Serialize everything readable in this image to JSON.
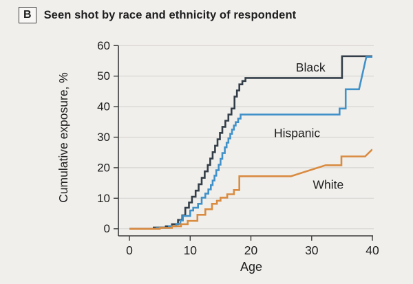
{
  "panel": {
    "letter": "B",
    "title": "Seen shot by race and ethnicity of respondent"
  },
  "colors": {
    "background": "#f0efec",
    "grid": "#d8d5d1",
    "axis": "#3a3a3a",
    "text": "#1e1e1e",
    "black_series": "#333e48",
    "hispanic_series": "#4191c9",
    "white_series": "#d98b40"
  },
  "chart_data": {
    "type": "line",
    "subtype": "step-cumulative",
    "title": "Seen shot by race and ethnicity of respondent",
    "xlabel": "Age",
    "ylabel": "Cumulative exposure, %",
    "xlim": [
      0,
      40
    ],
    "ylim": [
      0,
      60
    ],
    "xticks": [
      0,
      10,
      20,
      30,
      40
    ],
    "yticks": [
      0,
      10,
      20,
      30,
      40,
      50,
      60
    ],
    "grid": true,
    "legend_position": "inline-labels",
    "series": [
      {
        "name": "Black",
        "color": "#333e48",
        "label_at": [
          27.4,
          51.5
        ],
        "points": [
          [
            0,
            0
          ],
          [
            4,
            0
          ],
          [
            4,
            0.4
          ],
          [
            6,
            0.4
          ],
          [
            6,
            0.8
          ],
          [
            7,
            0.8
          ],
          [
            7,
            1.5
          ],
          [
            8,
            1.5
          ],
          [
            8,
            2.9
          ],
          [
            8.7,
            2.9
          ],
          [
            8.7,
            4.4
          ],
          [
            9.2,
            4.4
          ],
          [
            9.2,
            6.9
          ],
          [
            9.8,
            6.9
          ],
          [
            9.8,
            8.6
          ],
          [
            10.3,
            8.6
          ],
          [
            10.3,
            10.5
          ],
          [
            10.9,
            10.5
          ],
          [
            10.9,
            12.5
          ],
          [
            11.4,
            12.5
          ],
          [
            11.4,
            14.6
          ],
          [
            11.9,
            14.6
          ],
          [
            11.9,
            16.7
          ],
          [
            12.4,
            16.7
          ],
          [
            12.4,
            18.8
          ],
          [
            12.9,
            18.8
          ],
          [
            12.9,
            20.9
          ],
          [
            13.3,
            20.9
          ],
          [
            13.3,
            23
          ],
          [
            13.7,
            23
          ],
          [
            13.7,
            25.1
          ],
          [
            14.1,
            25.1
          ],
          [
            14.1,
            27.2
          ],
          [
            14.5,
            27.2
          ],
          [
            14.5,
            29.3
          ],
          [
            14.9,
            29.3
          ],
          [
            14.9,
            31.4
          ],
          [
            15.3,
            31.4
          ],
          [
            15.3,
            33.4
          ],
          [
            15.8,
            33.4
          ],
          [
            15.8,
            35.4
          ],
          [
            16.3,
            35.4
          ],
          [
            16.3,
            37.4
          ],
          [
            16.8,
            37.4
          ],
          [
            16.8,
            39.4
          ],
          [
            17.3,
            39.4
          ],
          [
            17.3,
            43.3
          ],
          [
            17.7,
            43.3
          ],
          [
            17.7,
            45.3
          ],
          [
            18.1,
            45.3
          ],
          [
            18.1,
            47.3
          ],
          [
            18.6,
            47.3
          ],
          [
            18.6,
            48.4
          ],
          [
            19.1,
            48.4
          ],
          [
            19.1,
            49.4
          ],
          [
            35,
            49.4
          ],
          [
            35,
            56.5
          ],
          [
            40,
            56.5
          ]
        ]
      },
      {
        "name": "Hispanic",
        "color": "#4191c9",
        "label_at": [
          23.8,
          30.0
        ],
        "points": [
          [
            0,
            0
          ],
          [
            4.5,
            0
          ],
          [
            4.5,
            0.3
          ],
          [
            6.5,
            0.3
          ],
          [
            6.5,
            0.8
          ],
          [
            7.7,
            0.8
          ],
          [
            7.7,
            1.6
          ],
          [
            8.4,
            1.6
          ],
          [
            8.4,
            2.7
          ],
          [
            8.8,
            2.7
          ],
          [
            8.8,
            4.2
          ],
          [
            10,
            4.2
          ],
          [
            10,
            6
          ],
          [
            10.5,
            6
          ],
          [
            10.5,
            6.9
          ],
          [
            11.3,
            6.9
          ],
          [
            11.3,
            8.2
          ],
          [
            11.9,
            8.2
          ],
          [
            11.9,
            10.2
          ],
          [
            12.5,
            10.2
          ],
          [
            12.5,
            11.5
          ],
          [
            13,
            11.5
          ],
          [
            13,
            12.9
          ],
          [
            13.4,
            12.9
          ],
          [
            13.4,
            14.3
          ],
          [
            13.7,
            14.3
          ],
          [
            13.7,
            15.8
          ],
          [
            14,
            15.8
          ],
          [
            14,
            17.4
          ],
          [
            14.3,
            17.4
          ],
          [
            14.3,
            19.2
          ],
          [
            14.7,
            19.2
          ],
          [
            14.7,
            21
          ],
          [
            15,
            21
          ],
          [
            15,
            22.9
          ],
          [
            15.3,
            22.9
          ],
          [
            15.3,
            24.8
          ],
          [
            15.7,
            24.8
          ],
          [
            15.7,
            26.7
          ],
          [
            16,
            26.7
          ],
          [
            16,
            28.2
          ],
          [
            16.3,
            28.2
          ],
          [
            16.3,
            29.6
          ],
          [
            16.6,
            29.6
          ],
          [
            16.6,
            31.1
          ],
          [
            16.9,
            31.1
          ],
          [
            16.9,
            32.5
          ],
          [
            17.2,
            32.5
          ],
          [
            17.2,
            33.8
          ],
          [
            17.5,
            33.8
          ],
          [
            17.5,
            34.9
          ],
          [
            17.9,
            34.9
          ],
          [
            17.9,
            36.1
          ],
          [
            18.3,
            36.1
          ],
          [
            18.3,
            37.4
          ],
          [
            34.6,
            37.4
          ],
          [
            34.6,
            39.4
          ],
          [
            35.6,
            39.4
          ],
          [
            35.6,
            45.7
          ],
          [
            37.8,
            45.7
          ],
          [
            39,
            56.3
          ],
          [
            40,
            56.3
          ]
        ]
      },
      {
        "name": "White",
        "color": "#d98b40",
        "label_at": [
          30.2,
          13.1
        ],
        "points": [
          [
            0,
            0
          ],
          [
            5,
            0
          ],
          [
            5,
            0.3
          ],
          [
            7,
            0.3
          ],
          [
            7,
            0.8
          ],
          [
            8.5,
            0.8
          ],
          [
            8.5,
            1.5
          ],
          [
            9.6,
            1.5
          ],
          [
            9.6,
            2.6
          ],
          [
            11.2,
            2.6
          ],
          [
            11.2,
            4.6
          ],
          [
            12.5,
            4.6
          ],
          [
            12.5,
            6.4
          ],
          [
            13.6,
            6.4
          ],
          [
            13.6,
            8.2
          ],
          [
            14.4,
            8.2
          ],
          [
            14.4,
            9.2
          ],
          [
            15,
            9.2
          ],
          [
            15,
            10.2
          ],
          [
            16.1,
            10.2
          ],
          [
            16.1,
            11.3
          ],
          [
            17.2,
            11.3
          ],
          [
            17.2,
            12.7
          ],
          [
            18.1,
            12.7
          ],
          [
            18.1,
            17.2
          ],
          [
            26.6,
            17.2
          ],
          [
            32.3,
            20.8
          ],
          [
            34.9,
            20.8
          ],
          [
            34.9,
            23.7
          ],
          [
            38.8,
            23.7
          ],
          [
            39.9,
            25.8
          ],
          [
            40,
            25.8
          ]
        ]
      }
    ]
  }
}
